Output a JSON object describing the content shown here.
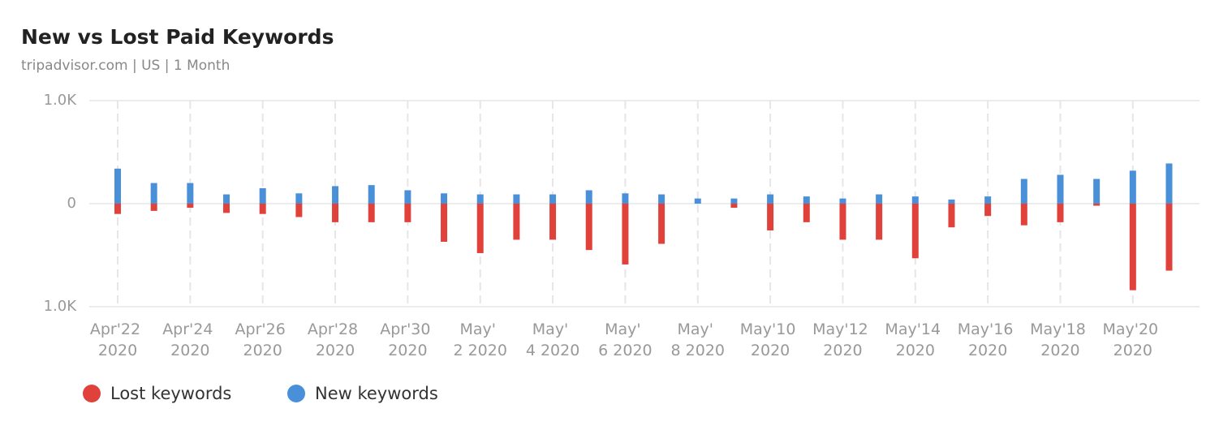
{
  "chart_data": {
    "type": "bar",
    "title": "New vs Lost Paid Keywords",
    "subtitle": "tripadvisor.com | US | 1 Month",
    "categories": [
      "Apr'22 2020",
      null,
      "Apr'24 2020",
      null,
      "Apr'26 2020",
      null,
      "Apr'28 2020",
      null,
      "Apr'30 2020",
      null,
      "May' 2 2020",
      null,
      "May' 4 2020",
      null,
      "May' 6 2020",
      null,
      "May' 8 2020",
      null,
      "May'10 2020",
      null,
      "May'12 2020",
      null,
      "May'14 2020",
      null,
      "May'16 2020",
      null,
      "May'18 2020",
      null,
      "May'20 2020",
      null
    ],
    "series": [
      {
        "name": "Lost keywords",
        "color": "#e0413a",
        "values": [
          -100,
          -70,
          -40,
          -90,
          -100,
          -130,
          -180,
          -180,
          -180,
          -370,
          -480,
          -350,
          -350,
          -450,
          -590,
          -390,
          0,
          -40,
          -260,
          -180,
          -350,
          -350,
          -530,
          -230,
          -120,
          -210,
          -180,
          -20,
          -840,
          -650
        ]
      },
      {
        "name": "New keywords",
        "color": "#4a90d9",
        "values": [
          340,
          200,
          200,
          90,
          150,
          100,
          170,
          180,
          130,
          100,
          90,
          90,
          90,
          130,
          100,
          90,
          50,
          50,
          90,
          70,
          50,
          90,
          70,
          40,
          70,
          240,
          280,
          240,
          320,
          390
        ]
      }
    ],
    "ylim": [
      -1000,
      1000
    ],
    "yticks": [
      {
        "value": 1000,
        "label": "1.0K"
      },
      0,
      {
        "value": -1000,
        "label": "1.0K"
      }
    ],
    "grid": true
  }
}
